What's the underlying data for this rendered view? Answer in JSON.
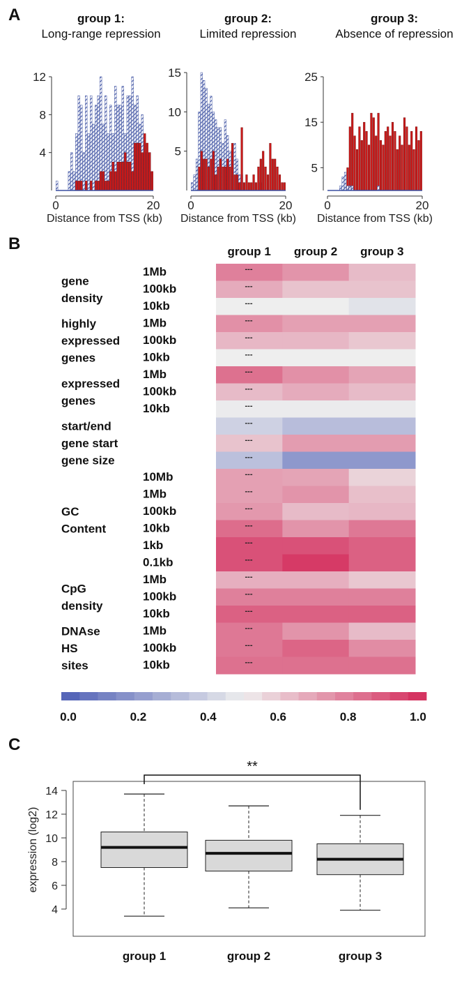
{
  "panels": {
    "a": "A",
    "b": "B",
    "c": "C"
  },
  "panel_a": {
    "groups": [
      {
        "label": "group 1:",
        "subtitle": "Long-range repression"
      },
      {
        "label": "group 2:",
        "subtitle": "Limited repression"
      },
      {
        "label": "group 3:",
        "subtitle": "Absence of repression"
      }
    ],
    "xlabel": "Distance from TSS (kb)"
  },
  "colors": {
    "repressed_bar": "#cc1a1a",
    "hatched_bar": "#3a4fa0",
    "heat_low": "#4e5fb5",
    "heat_mid": "#eeeeee",
    "heat_high": "#d42a5a",
    "box_fill": "#d9d9d9"
  },
  "panel_b": {
    "columns": [
      "group 1",
      "group 2",
      "group 3"
    ],
    "cell_marker": "---",
    "features": [
      {
        "name": [
          "gene",
          "density"
        ],
        "scales": [
          "1Mb",
          "100kb",
          "10kb"
        ]
      },
      {
        "name": [
          "highly",
          "expressed",
          "genes"
        ],
        "scales": [
          "1Mb",
          "100kb",
          "10kb"
        ]
      },
      {
        "name": [
          "expressed",
          "genes"
        ],
        "scales": [
          "1Mb",
          "100kb",
          "10kb"
        ]
      },
      {
        "name": [
          "start/end",
          "gene start",
          "gene size"
        ],
        "scales": []
      },
      {
        "name": [
          "GC",
          "Content"
        ],
        "scales": [
          "10Mb",
          "1Mb",
          "100kb",
          "10kb",
          "1kb",
          "0.1kb"
        ]
      },
      {
        "name": [
          "CpG",
          "density"
        ],
        "scales": [
          "1Mb",
          "100kb",
          "10kb"
        ]
      },
      {
        "name": [
          "DNAse",
          "HS",
          "sites"
        ],
        "scales": [
          "1Mb",
          "100kb",
          "10kb"
        ]
      }
    ],
    "colorbar_ticks": [
      "0.0",
      "0.2",
      "0.4",
      "0.6",
      "0.8",
      "1.0"
    ]
  },
  "panel_c": {
    "annotation": "**"
  },
  "chart_data": [
    {
      "type": "bar",
      "title": "group 1: Long-range repression",
      "xlabel": "Distance from TSS (kb)",
      "xlim": [
        0,
        20
      ],
      "ylim": [
        0,
        12
      ],
      "yticks": [
        "4",
        "8",
        "12"
      ],
      "xticks": [
        "0",
        "20"
      ],
      "series": [
        {
          "name": "",
          "values": [
            1,
            0,
            0,
            0,
            0,
            2,
            4,
            2,
            6,
            10,
            9,
            4,
            10,
            6,
            10,
            7,
            9,
            10,
            12,
            7,
            10,
            6,
            9,
            6,
            11,
            9,
            9,
            11,
            6,
            10,
            10,
            12,
            9,
            10,
            7,
            8,
            5,
            4,
            4,
            2
          ]
        },
        {
          "name": "",
          "values": [
            0,
            0,
            0,
            0,
            0,
            0,
            0,
            0,
            1,
            1,
            1,
            0,
            1,
            0,
            1,
            0,
            1,
            1,
            2,
            2,
            1,
            1,
            2,
            3,
            2,
            3,
            3,
            3,
            4,
            3,
            3,
            2,
            5,
            5,
            5,
            4,
            6,
            5,
            4,
            2
          ]
        }
      ]
    },
    {
      "type": "bar",
      "title": "group 2: Limited repression",
      "xlabel": "Distance from TSS (kb)",
      "xlim": [
        0,
        20
      ],
      "ylim": [
        0,
        15
      ],
      "yticks": [
        "5",
        "10",
        "15"
      ],
      "xticks": [
        "0",
        "20"
      ],
      "series": [
        {
          "name": "",
          "values": [
            1,
            2,
            4,
            10,
            15,
            14,
            13,
            11,
            12,
            10,
            9,
            8,
            8,
            6,
            9,
            7,
            5,
            5,
            6,
            4,
            2,
            2,
            1,
            0,
            0,
            0,
            1,
            0,
            0,
            1,
            0,
            0,
            0,
            0,
            0,
            0,
            0,
            0,
            0,
            0
          ]
        },
        {
          "name": "",
          "values": [
            0,
            0,
            0,
            3,
            5,
            4,
            4,
            3,
            4,
            5,
            2,
            3,
            4,
            3,
            3,
            4,
            3,
            6,
            2,
            2,
            1,
            8,
            1,
            2,
            1,
            1,
            2,
            1,
            3,
            4,
            5,
            3,
            2,
            6,
            4,
            4,
            3,
            2,
            1,
            1
          ]
        }
      ]
    },
    {
      "type": "bar",
      "title": "group 3: Absence of repression",
      "xlabel": "Distance from TSS (kb)",
      "xlim": [
        0,
        20
      ],
      "ylim": [
        0,
        25
      ],
      "yticks": [
        "5",
        "15",
        "25"
      ],
      "xticks": [
        "0",
        "20"
      ],
      "series": [
        {
          "name": "",
          "values": [
            0,
            0,
            0,
            0,
            0,
            1,
            3,
            4,
            1,
            1,
            1,
            0,
            0,
            0,
            0,
            0,
            0,
            0,
            0,
            0,
            0,
            1,
            0,
            0,
            0,
            0,
            0,
            0,
            0,
            0,
            0,
            0,
            0,
            0,
            0,
            0,
            0,
            0,
            0,
            0
          ]
        },
        {
          "name": "",
          "values": [
            0,
            0,
            0,
            0,
            0,
            0,
            0,
            1,
            5,
            14,
            17,
            12,
            9,
            14,
            11,
            15,
            13,
            10,
            17,
            16,
            12,
            17,
            11,
            10,
            13,
            14,
            12,
            15,
            13,
            9,
            12,
            10,
            16,
            14,
            10,
            13,
            9,
            14,
            11,
            13
          ]
        }
      ]
    },
    {
      "type": "heatmap",
      "xlabel": "",
      "ylabel": "",
      "categories": [
        "group 1",
        "group 2",
        "group 3"
      ],
      "rows": [
        "gene density 1Mb",
        "gene density 100kb",
        "gene density 10kb",
        "highly expressed genes 1Mb",
        "highly expressed genes 100kb",
        "highly expressed genes 10kb",
        "expressed genes 1Mb",
        "expressed genes 100kb",
        "expressed genes 10kb",
        "start/end",
        "gene start",
        "gene size",
        "GC Content 10Mb",
        "GC Content 1Mb",
        "GC Content 100kb",
        "GC Content 10kb",
        "GC Content 1kb",
        "GC Content 0.1kb",
        "CpG density 1Mb",
        "CpG density 100kb",
        "CpG density 10kb",
        "DNAse HS sites 1Mb",
        "DNAse HS sites 100kb",
        "DNAse HS sites 10kb"
      ],
      "values": [
        [
          0.78,
          0.73,
          0.63
        ],
        [
          0.67,
          0.61,
          0.61
        ],
        [
          0.5,
          0.5,
          0.46
        ],
        [
          0.74,
          0.7,
          0.7
        ],
        [
          0.64,
          0.64,
          0.6
        ],
        [
          0.5,
          0.5,
          0.5
        ],
        [
          0.82,
          0.74,
          0.69
        ],
        [
          0.63,
          0.67,
          0.63
        ],
        [
          0.49,
          0.49,
          0.49
        ],
        [
          0.4,
          0.33,
          0.33
        ],
        [
          0.61,
          0.71,
          0.71
        ],
        [
          0.34,
          0.2,
          0.2
        ],
        [
          0.7,
          0.69,
          0.57
        ],
        [
          0.7,
          0.73,
          0.62
        ],
        [
          0.72,
          0.63,
          0.64
        ],
        [
          0.83,
          0.73,
          0.8
        ],
        [
          0.9,
          0.9,
          0.86
        ],
        [
          0.9,
          0.96,
          0.86
        ],
        [
          0.66,
          0.66,
          0.6
        ],
        [
          0.78,
          0.78,
          0.78
        ],
        [
          0.86,
          0.86,
          0.86
        ],
        [
          0.8,
          0.73,
          0.63
        ],
        [
          0.8,
          0.85,
          0.75
        ],
        [
          0.82,
          0.82,
          0.82
        ]
      ],
      "colorbar_range": [
        0.0,
        1.0
      ]
    },
    {
      "type": "box",
      "xlabel": "",
      "ylabel": "expression (log2)",
      "categories": [
        "group 1",
        "group 2",
        "group 3"
      ],
      "ylim": [
        3.2,
        14.8
      ],
      "yticks": [
        4,
        6,
        8,
        10,
        12,
        14
      ],
      "boxes": [
        {
          "min": 3.4,
          "q1": 7.5,
          "median": 9.2,
          "q3": 10.5,
          "max": 13.7
        },
        {
          "min": 4.1,
          "q1": 7.2,
          "median": 8.7,
          "q3": 9.8,
          "max": 12.7
        },
        {
          "min": 3.9,
          "q1": 6.9,
          "median": 8.2,
          "q3": 9.5,
          "max": 11.9
        }
      ],
      "significance": {
        "from": "group 1",
        "to": "group 3",
        "label": "**"
      }
    }
  ]
}
